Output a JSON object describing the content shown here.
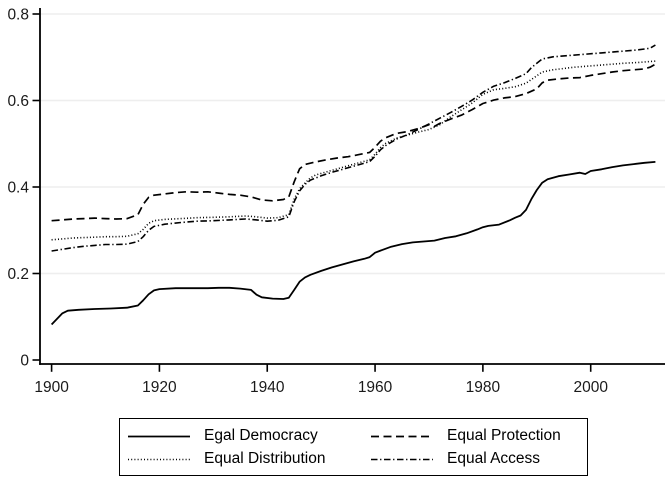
{
  "figure": {
    "background": "#ffffff",
    "line_color": "#000000",
    "grid_color": "#eeeeee",
    "text_color": "#1a1a1a"
  },
  "axes": {
    "x_tick_labels": [
      "1900",
      "1920",
      "1940",
      "1960",
      "1980",
      "2000"
    ],
    "y_tick_labels": [
      "0",
      "0.2",
      "0.4",
      "0.6",
      "0.8"
    ]
  },
  "chart_data": {
    "type": "line",
    "title": "",
    "xlabel": "",
    "ylabel": "",
    "xlim": [
      1900,
      2012
    ],
    "ylim": [
      0,
      0.8
    ],
    "x_ticks": [
      1900,
      1920,
      1940,
      1960,
      1980,
      2000
    ],
    "y_ticks": [
      0,
      0.2,
      0.4,
      0.6,
      0.8
    ],
    "grid": "horizontal light-gray gridlines at y ticks",
    "legend_position": "bottom-center, boxed, 2 rows x 2 columns",
    "series": [
      {
        "name": "Egal Democracy",
        "line_style": "solid",
        "points": [
          [
            1900,
            0.082
          ],
          [
            1901,
            0.095
          ],
          [
            1902,
            0.108
          ],
          [
            1903,
            0.114
          ],
          [
            1905,
            0.116
          ],
          [
            1908,
            0.118
          ],
          [
            1911,
            0.119
          ],
          [
            1914,
            0.121
          ],
          [
            1916,
            0.126
          ],
          [
            1917,
            0.138
          ],
          [
            1918,
            0.152
          ],
          [
            1919,
            0.161
          ],
          [
            1920,
            0.164
          ],
          [
            1923,
            0.166
          ],
          [
            1926,
            0.166
          ],
          [
            1929,
            0.166
          ],
          [
            1931,
            0.167
          ],
          [
            1933,
            0.167
          ],
          [
            1935,
            0.165
          ],
          [
            1937,
            0.162
          ],
          [
            1938,
            0.151
          ],
          [
            1939,
            0.145
          ],
          [
            1941,
            0.142
          ],
          [
            1943,
            0.141
          ],
          [
            1944,
            0.144
          ],
          [
            1945,
            0.162
          ],
          [
            1946,
            0.181
          ],
          [
            1947,
            0.191
          ],
          [
            1948,
            0.197
          ],
          [
            1950,
            0.206
          ],
          [
            1952,
            0.214
          ],
          [
            1954,
            0.221
          ],
          [
            1956,
            0.228
          ],
          [
            1958,
            0.234
          ],
          [
            1959,
            0.238
          ],
          [
            1960,
            0.248
          ],
          [
            1961,
            0.253
          ],
          [
            1963,
            0.262
          ],
          [
            1965,
            0.268
          ],
          [
            1967,
            0.272
          ],
          [
            1969,
            0.274
          ],
          [
            1971,
            0.276
          ],
          [
            1973,
            0.282
          ],
          [
            1975,
            0.286
          ],
          [
            1977,
            0.293
          ],
          [
            1979,
            0.302
          ],
          [
            1980,
            0.307
          ],
          [
            1981,
            0.31
          ],
          [
            1983,
            0.313
          ],
          [
            1985,
            0.323
          ],
          [
            1986,
            0.329
          ],
          [
            1987,
            0.334
          ],
          [
            1988,
            0.347
          ],
          [
            1989,
            0.372
          ],
          [
            1990,
            0.393
          ],
          [
            1991,
            0.41
          ],
          [
            1992,
            0.418
          ],
          [
            1994,
            0.425
          ],
          [
            1996,
            0.429
          ],
          [
            1998,
            0.433
          ],
          [
            1999,
            0.43
          ],
          [
            2000,
            0.437
          ],
          [
            2002,
            0.441
          ],
          [
            2004,
            0.446
          ],
          [
            2006,
            0.45
          ],
          [
            2008,
            0.453
          ],
          [
            2010,
            0.456
          ],
          [
            2012,
            0.458
          ]
        ]
      },
      {
        "name": "Equal Protection",
        "line_style": "dashed",
        "points": [
          [
            1900,
            0.322
          ],
          [
            1902,
            0.324
          ],
          [
            1904,
            0.326
          ],
          [
            1906,
            0.327
          ],
          [
            1908,
            0.328
          ],
          [
            1910,
            0.327
          ],
          [
            1912,
            0.326
          ],
          [
            1914,
            0.327
          ],
          [
            1916,
            0.336
          ],
          [
            1917,
            0.36
          ],
          [
            1918,
            0.376
          ],
          [
            1919,
            0.381
          ],
          [
            1921,
            0.384
          ],
          [
            1923,
            0.387
          ],
          [
            1925,
            0.389
          ],
          [
            1927,
            0.388
          ],
          [
            1929,
            0.389
          ],
          [
            1931,
            0.386
          ],
          [
            1933,
            0.383
          ],
          [
            1935,
            0.381
          ],
          [
            1937,
            0.377
          ],
          [
            1939,
            0.37
          ],
          [
            1941,
            0.368
          ],
          [
            1943,
            0.371
          ],
          [
            1944,
            0.377
          ],
          [
            1945,
            0.412
          ],
          [
            1946,
            0.442
          ],
          [
            1947,
            0.452
          ],
          [
            1949,
            0.458
          ],
          [
            1951,
            0.463
          ],
          [
            1953,
            0.467
          ],
          [
            1955,
            0.47
          ],
          [
            1957,
            0.475
          ],
          [
            1959,
            0.48
          ],
          [
            1960,
            0.492
          ],
          [
            1961,
            0.506
          ],
          [
            1962,
            0.514
          ],
          [
            1964,
            0.524
          ],
          [
            1966,
            0.528
          ],
          [
            1968,
            0.535
          ],
          [
            1970,
            0.544
          ],
          [
            1971,
            0.54
          ],
          [
            1972,
            0.547
          ],
          [
            1974,
            0.557
          ],
          [
            1976,
            0.566
          ],
          [
            1978,
            0.579
          ],
          [
            1980,
            0.593
          ],
          [
            1982,
            0.601
          ],
          [
            1984,
            0.606
          ],
          [
            1986,
            0.609
          ],
          [
            1988,
            0.616
          ],
          [
            1990,
            0.627
          ],
          [
            1991,
            0.641
          ],
          [
            1992,
            0.647
          ],
          [
            1994,
            0.65
          ],
          [
            1996,
            0.652
          ],
          [
            1998,
            0.653
          ],
          [
            2000,
            0.658
          ],
          [
            2002,
            0.662
          ],
          [
            2004,
            0.666
          ],
          [
            2006,
            0.669
          ],
          [
            2008,
            0.671
          ],
          [
            2010,
            0.673
          ],
          [
            2011,
            0.677
          ],
          [
            2012,
            0.684
          ]
        ]
      },
      {
        "name": "Equal Distribution",
        "line_style": "dotted",
        "points": [
          [
            1900,
            0.278
          ],
          [
            1902,
            0.28
          ],
          [
            1904,
            0.282
          ],
          [
            1906,
            0.283
          ],
          [
            1908,
            0.284
          ],
          [
            1910,
            0.285
          ],
          [
            1912,
            0.285
          ],
          [
            1914,
            0.286
          ],
          [
            1916,
            0.292
          ],
          [
            1917,
            0.302
          ],
          [
            1918,
            0.316
          ],
          [
            1919,
            0.322
          ],
          [
            1921,
            0.325
          ],
          [
            1924,
            0.327
          ],
          [
            1927,
            0.329
          ],
          [
            1930,
            0.33
          ],
          [
            1933,
            0.331
          ],
          [
            1936,
            0.333
          ],
          [
            1938,
            0.331
          ],
          [
            1940,
            0.328
          ],
          [
            1942,
            0.329
          ],
          [
            1944,
            0.336
          ],
          [
            1945,
            0.372
          ],
          [
            1946,
            0.396
          ],
          [
            1947,
            0.409
          ],
          [
            1948,
            0.421
          ],
          [
            1949,
            0.428
          ],
          [
            1951,
            0.435
          ],
          [
            1953,
            0.442
          ],
          [
            1955,
            0.449
          ],
          [
            1957,
            0.456
          ],
          [
            1959,
            0.463
          ],
          [
            1960,
            0.476
          ],
          [
            1961,
            0.491
          ],
          [
            1962,
            0.501
          ],
          [
            1964,
            0.513
          ],
          [
            1966,
            0.52
          ],
          [
            1968,
            0.527
          ],
          [
            1970,
            0.533
          ],
          [
            1972,
            0.544
          ],
          [
            1974,
            0.562
          ],
          [
            1976,
            0.578
          ],
          [
            1978,
            0.594
          ],
          [
            1980,
            0.614
          ],
          [
            1982,
            0.625
          ],
          [
            1984,
            0.628
          ],
          [
            1986,
            0.632
          ],
          [
            1988,
            0.64
          ],
          [
            1990,
            0.657
          ],
          [
            1991,
            0.666
          ],
          [
            1993,
            0.671
          ],
          [
            1995,
            0.674
          ],
          [
            1997,
            0.677
          ],
          [
            2000,
            0.68
          ],
          [
            2003,
            0.683
          ],
          [
            2006,
            0.686
          ],
          [
            2009,
            0.688
          ],
          [
            2012,
            0.691
          ]
        ]
      },
      {
        "name": "Equal Access",
        "line_style": "dashdot",
        "points": [
          [
            1900,
            0.252
          ],
          [
            1902,
            0.256
          ],
          [
            1904,
            0.26
          ],
          [
            1906,
            0.263
          ],
          [
            1908,
            0.265
          ],
          [
            1910,
            0.267
          ],
          [
            1912,
            0.267
          ],
          [
            1914,
            0.268
          ],
          [
            1916,
            0.274
          ],
          [
            1917,
            0.285
          ],
          [
            1918,
            0.3
          ],
          [
            1919,
            0.309
          ],
          [
            1921,
            0.314
          ],
          [
            1924,
            0.318
          ],
          [
            1927,
            0.321
          ],
          [
            1930,
            0.322
          ],
          [
            1933,
            0.324
          ],
          [
            1936,
            0.326
          ],
          [
            1938,
            0.324
          ],
          [
            1940,
            0.321
          ],
          [
            1942,
            0.323
          ],
          [
            1944,
            0.331
          ],
          [
            1945,
            0.366
          ],
          [
            1946,
            0.391
          ],
          [
            1947,
            0.406
          ],
          [
            1948,
            0.416
          ],
          [
            1950,
            0.426
          ],
          [
            1952,
            0.434
          ],
          [
            1954,
            0.441
          ],
          [
            1956,
            0.448
          ],
          [
            1958,
            0.455
          ],
          [
            1959,
            0.459
          ],
          [
            1960,
            0.471
          ],
          [
            1961,
            0.486
          ],
          [
            1962,
            0.496
          ],
          [
            1964,
            0.511
          ],
          [
            1966,
            0.521
          ],
          [
            1968,
            0.533
          ],
          [
            1970,
            0.546
          ],
          [
            1972,
            0.559
          ],
          [
            1974,
            0.572
          ],
          [
            1976,
            0.586
          ],
          [
            1978,
            0.601
          ],
          [
            1980,
            0.619
          ],
          [
            1982,
            0.633
          ],
          [
            1984,
            0.641
          ],
          [
            1986,
            0.651
          ],
          [
            1988,
            0.662
          ],
          [
            1989,
            0.676
          ],
          [
            1990,
            0.686
          ],
          [
            1991,
            0.696
          ],
          [
            1993,
            0.701
          ],
          [
            1996,
            0.704
          ],
          [
            1999,
            0.707
          ],
          [
            2002,
            0.71
          ],
          [
            2005,
            0.713
          ],
          [
            2008,
            0.716
          ],
          [
            2010,
            0.719
          ],
          [
            2011,
            0.721
          ],
          [
            2012,
            0.728
          ]
        ]
      }
    ]
  }
}
